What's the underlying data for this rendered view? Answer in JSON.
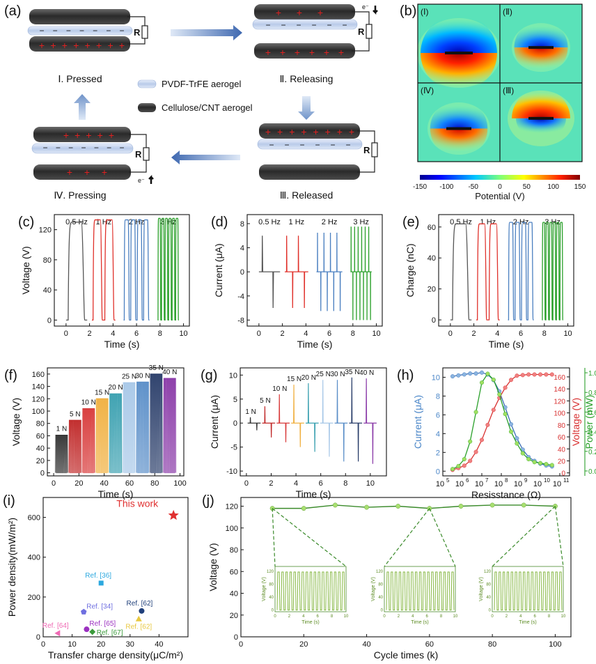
{
  "panel_a": {
    "label": "(a)",
    "res": "R",
    "electron": "e⁻",
    "step1": "Ⅰ. Pressed",
    "step2": "Ⅱ. Releasing",
    "step3": "Ⅲ. Released",
    "step4": "Ⅳ. Pressing",
    "legend_pvdf": "PVDF-TrFE aerogel",
    "legend_cnt": "Cellulose/CNT aerogel",
    "plus": "+",
    "minus": "−",
    "color_pvdf": "#c9d8f0",
    "color_cnt": "#2f2f2f",
    "color_plus": "#e02020"
  },
  "panel_b": {
    "label": "(b)",
    "q1": "(Ⅰ)",
    "q2": "(Ⅱ)",
    "q3": "(Ⅲ)",
    "q4": "(Ⅳ)",
    "cb_ticks": [
      "-150",
      "-100",
      "-50",
      "0",
      "50",
      "100",
      "150"
    ],
    "cb_label": "Potential (V)"
  },
  "panel_c": {
    "label": "(c)",
    "ylabel": "Voltage (V)",
    "xlabel": "Time (s)",
    "freqs": [
      "0.5 Hz",
      "1 Hz",
      "2 Hz",
      "3 Hz"
    ],
    "xticks": [
      "0",
      "2",
      "4",
      "6",
      "8",
      "10"
    ],
    "yticks": [
      "0",
      "40",
      "80",
      "120"
    ]
  },
  "panel_d": {
    "label": "(d)",
    "ylabel": "Current (μA)",
    "xlabel": "Time (s)",
    "freqs": [
      "0.5 Hz",
      "1 Hz",
      "2 Hz",
      "3 Hz"
    ],
    "xticks": [
      "0",
      "2",
      "4",
      "6",
      "8",
      "10"
    ],
    "yticks": [
      "-8",
      "-4",
      "0",
      "4",
      "8"
    ]
  },
  "panel_e": {
    "label": "(e)",
    "ylabel": "Charge (nC)",
    "xlabel": "Time (s)",
    "freqs": [
      "0.5 Hz",
      "1 Hz",
      "2 Hz",
      "3 Hz"
    ],
    "xticks": [
      "0",
      "2",
      "4",
      "6",
      "8",
      "10"
    ],
    "yticks": [
      "0",
      "20",
      "40",
      "60"
    ]
  },
  "panel_f": {
    "label": "(f)",
    "ylabel": "Voltage (V)",
    "xlabel": "Time (s)",
    "forces": [
      "1 N",
      "5 N",
      "10 N",
      "15 N",
      "20 N",
      "25 N",
      "30 N",
      "35 N",
      "40 N"
    ],
    "xticks": [
      "0",
      "20",
      "40",
      "60",
      "80",
      "100"
    ],
    "yticks": [
      "0",
      "20",
      "40",
      "60",
      "80",
      "100",
      "120",
      "140",
      "160"
    ]
  },
  "panel_g": {
    "label": "(g)",
    "ylabel": "Current (μA)",
    "xlabel": "Time (s)",
    "forces": [
      "1 N",
      "5 N",
      "10 N",
      "15 N",
      "20 N",
      "25 N",
      "30 N",
      "35 N",
      "40 N"
    ],
    "xticks": [
      "0",
      "2",
      "4",
      "6",
      "8",
      "10"
    ],
    "yticks": [
      "-10",
      "-5",
      "0",
      "5",
      "10"
    ]
  },
  "panel_h": {
    "label": "(h)",
    "ylabel_left": "Current (μA)",
    "ylabel_mid": "Voltage (V)",
    "ylabel_right": "Power (mW)",
    "xlabel": "Resisstance (Ω)",
    "yticks_left": [
      "0",
      "2",
      "4",
      "6",
      "8",
      "10"
    ],
    "yticks_mid": [
      "0",
      "20",
      "40",
      "60",
      "80",
      "100",
      "120",
      "140",
      "160"
    ],
    "yticks_right": [
      "0.0",
      "0.2",
      "0.4",
      "0.6",
      "0.8",
      "1.0"
    ],
    "xticks_base": "10",
    "xticks_exp": [
      "5",
      "6",
      "7",
      "8",
      "9",
      "10",
      "11"
    ]
  },
  "panel_i": {
    "label": "(i)",
    "ylabel": "Power density(mW/m²)",
    "xlabel": "Transfer charge density(μC/m²)",
    "xticks": [
      "0",
      "10",
      "20",
      "30",
      "40"
    ],
    "yticks": [
      "0",
      "200",
      "400",
      "600"
    ]
  },
  "panel_j": {
    "label": "(j)",
    "ylabel": "Voltage (V)",
    "xlabel": "Cycle times (k)",
    "xticks": [
      "0",
      "20",
      "40",
      "60",
      "80",
      "100"
    ],
    "yticks": [
      "0",
      "20",
      "40",
      "60",
      "80",
      "100",
      "120"
    ],
    "inset_ylabel": "Voltage (V)",
    "inset_xlabel": "Time (s)",
    "inset_xticks": [
      "0",
      "2",
      "4",
      "6",
      "8",
      "10"
    ],
    "inset_yticks": [
      "0",
      "40",
      "80",
      "120"
    ]
  },
  "chart_data": [
    {
      "type": "line",
      "panel": "c",
      "title": "",
      "xlabel": "Time (s)",
      "ylabel": "Voltage (V)",
      "xlim": [
        -1,
        10.5
      ],
      "ylim": [
        -8,
        140
      ],
      "series": [
        {
          "name": "0.5 Hz",
          "values": [
            130
          ],
          "peak": 130
        },
        {
          "name": "1 Hz",
          "peak": 133
        },
        {
          "name": "2 Hz",
          "peak": 133
        },
        {
          "name": "3 Hz",
          "peak": 135
        }
      ]
    },
    {
      "type": "line",
      "panel": "d",
      "xlabel": "Time (s)",
      "ylabel": "Current (μA)",
      "xlim": [
        -1,
        10.5
      ],
      "ylim": [
        -9,
        9.5
      ],
      "series": [
        {
          "name": "0.5 Hz",
          "peak": 6,
          "trough": -6
        },
        {
          "name": "1 Hz",
          "peak": 6,
          "trough": -6
        },
        {
          "name": "2 Hz",
          "peak": 6.5,
          "trough": -6.5
        },
        {
          "name": "3 Hz",
          "peak": 7.5,
          "trough": -8
        }
      ]
    },
    {
      "type": "line",
      "panel": "e",
      "xlabel": "Time (s)",
      "ylabel": "Charge (nC)",
      "xlim": [
        -1,
        10.5
      ],
      "ylim": [
        -4,
        68
      ],
      "series": [
        {
          "name": "0.5 Hz",
          "peak": 62
        },
        {
          "name": "1 Hz",
          "peak": 62
        },
        {
          "name": "2 Hz",
          "peak": 63
        },
        {
          "name": "3 Hz",
          "peak": 63
        }
      ]
    },
    {
      "type": "bar",
      "panel": "f",
      "xlabel": "Time (s)",
      "ylabel": "Voltage (V)",
      "xlim": [
        -5,
        103
      ],
      "ylim": [
        -5,
        170
      ],
      "categories": [
        "1 N",
        "5 N",
        "10 N",
        "15 N",
        "20 N",
        "25 N",
        "30 N",
        "35 N",
        "40 N"
      ],
      "values": [
        61,
        85,
        104,
        120,
        128,
        146,
        147,
        160,
        153
      ]
    },
    {
      "type": "line",
      "panel": "g",
      "xlabel": "Time (s)",
      "ylabel": "Current (μA)",
      "xlim": [
        -0.5,
        11.3
      ],
      "ylim": [
        -11,
        11.5
      ],
      "categories": [
        "1 N",
        "5 N",
        "10 N",
        "15 N",
        "20 N",
        "25 N",
        "30 N",
        "35 N",
        "40 N"
      ],
      "peaks": [
        1.2,
        3.5,
        6,
        8,
        8.3,
        9,
        9,
        9.5,
        9.3
      ],
      "troughs": [
        -1.5,
        -3,
        -4,
        -5,
        -6,
        -7,
        -8,
        -8,
        -8.5
      ]
    },
    {
      "type": "line",
      "panel": "h",
      "xlabel": "Resisstance (Ω)",
      "xlog": true,
      "xlim": [
        5,
        11.5
      ],
      "series": [
        {
          "name": "Current (μA)",
          "axis": "left",
          "x": [
            5.5,
            5.8,
            6.1,
            6.4,
            6.7,
            7.0,
            7.3,
            7.6,
            7.9,
            8.2,
            8.5,
            8.8,
            9.1,
            9.4,
            9.7,
            10,
            10.3,
            10.6
          ],
          "values": [
            10.1,
            10.2,
            10.3,
            10.4,
            10.4,
            10.5,
            10.3,
            9.7,
            8.5,
            6.8,
            5,
            3.5,
            2.3,
            1.5,
            1.1,
            0.8,
            0.6,
            0.5
          ]
        },
        {
          "name": "Voltage (V)",
          "axis": "mid",
          "x": [
            5.5,
            5.8,
            6.1,
            6.4,
            6.7,
            7.0,
            7.3,
            7.6,
            7.9,
            8.2,
            8.5,
            8.8,
            9.1,
            9.4,
            9.7,
            10,
            10.3,
            10.6
          ],
          "values": [
            5,
            8,
            12,
            20,
            35,
            55,
            80,
            105,
            125,
            142,
            155,
            162,
            163,
            164,
            164,
            164,
            164,
            164
          ]
        },
        {
          "name": "Power (mW)",
          "axis": "right",
          "x": [
            5.5,
            5.8,
            6.1,
            6.4,
            6.7,
            7.0,
            7.3,
            7.6,
            7.9,
            8.2,
            8.5,
            8.8,
            9.1,
            9.4,
            9.7,
            10,
            10.3,
            10.6
          ],
          "values": [
            0.02,
            0.05,
            0.12,
            0.3,
            0.6,
            0.9,
            0.99,
            0.93,
            0.78,
            0.58,
            0.4,
            0.28,
            0.18,
            0.12,
            0.09,
            0.08,
            0.07,
            0.06
          ]
        }
      ]
    },
    {
      "type": "scatter",
      "panel": "i",
      "xlabel": "Transfer charge density(μC/m²)",
      "ylabel": "Power density(mW/m²)",
      "xlim": [
        0,
        50
      ],
      "ylim": [
        0,
        700
      ],
      "points": [
        {
          "label": "This work",
          "x": 45,
          "y": 610,
          "color": "#e03030",
          "marker": "star"
        },
        {
          "label": "Ref. [36]",
          "x": 20,
          "y": 270,
          "color": "#2ca8df",
          "marker": "square"
        },
        {
          "label": "Ref. [34]",
          "x": 14,
          "y": 125,
          "color": "#6f6fe0",
          "marker": "pentagon"
        },
        {
          "label": "Ref. [62]",
          "x": 34,
          "y": 130,
          "color": "#1f3f7a",
          "marker": "circle"
        },
        {
          "label": "Ref. [65]",
          "x": 15,
          "y": 38,
          "color": "#9b30c0",
          "marker": "circle"
        },
        {
          "label": "Ref. [67]",
          "x": 17,
          "y": 25,
          "color": "#3a9a3a",
          "marker": "diamond"
        },
        {
          "label": "Ref. [62]",
          "x": 33,
          "y": 90,
          "color": "#e8c840",
          "marker": "triangle"
        },
        {
          "label": "Ref. [64]",
          "x": 5,
          "y": 18,
          "color": "#ef69b4",
          "marker": "triangle-left"
        }
      ]
    },
    {
      "type": "line",
      "panel": "j",
      "xlabel": "Cycle times (k)",
      "ylabel": "Voltage (V)",
      "xlim": [
        0,
        105
      ],
      "ylim": [
        0,
        128
      ],
      "x": [
        10,
        20,
        30,
        40,
        50,
        60,
        70,
        80,
        90,
        100
      ],
      "values": [
        118,
        118,
        121,
        119,
        120,
        118,
        120,
        121,
        121,
        120
      ]
    }
  ]
}
